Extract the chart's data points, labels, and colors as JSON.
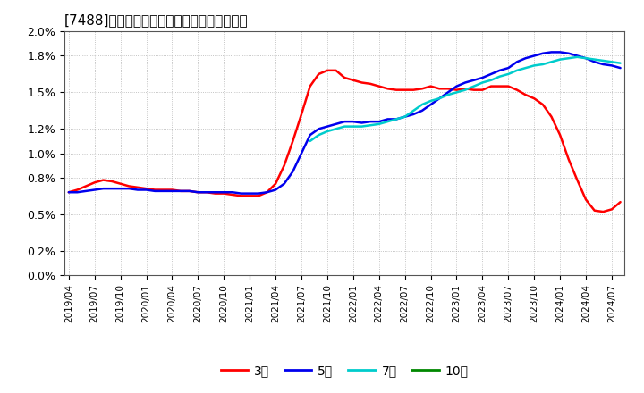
{
  "title": "[7488]　経常利益マージンの標準偏差の推移",
  "title_fontsize": 11,
  "background_color": "#ffffff",
  "plot_bg_color": "#ffffff",
  "grid_color": "#aaaaaa",
  "series": {
    "3年": {
      "color": "#ff0000",
      "linewidth": 1.8,
      "x": [
        0,
        1,
        2,
        3,
        4,
        5,
        6,
        7,
        8,
        9,
        10,
        11,
        12,
        13,
        14,
        15,
        16,
        17,
        18,
        19,
        20,
        21,
        22,
        23,
        24,
        25,
        26,
        27,
        28,
        29,
        30,
        31,
        32,
        33,
        34,
        35,
        36,
        37,
        38,
        39,
        40,
        41,
        42,
        43,
        44,
        45,
        46,
        47,
        48,
        49,
        50,
        51,
        52,
        53,
        54,
        55,
        56,
        57,
        58,
        59,
        60,
        61,
        62,
        63,
        64
      ],
      "y": [
        0.0068,
        0.007,
        0.0073,
        0.0076,
        0.0078,
        0.0077,
        0.0075,
        0.0073,
        0.0072,
        0.0071,
        0.007,
        0.007,
        0.007,
        0.0069,
        0.0069,
        0.0068,
        0.0068,
        0.0067,
        0.0067,
        0.0066,
        0.0065,
        0.0065,
        0.0065,
        0.0068,
        0.0075,
        0.009,
        0.011,
        0.0132,
        0.0155,
        0.0165,
        0.0168,
        0.0168,
        0.0162,
        0.016,
        0.0158,
        0.0157,
        0.0155,
        0.0153,
        0.0152,
        0.0152,
        0.0152,
        0.0153,
        0.0155,
        0.0153,
        0.0153,
        0.0152,
        0.0153,
        0.0152,
        0.0152,
        0.0155,
        0.0155,
        0.0155,
        0.0152,
        0.0148,
        0.0145,
        0.014,
        0.013,
        0.0115,
        0.0095,
        0.0078,
        0.0062,
        0.0053,
        0.0052,
        0.0054,
        0.006
      ]
    },
    "5年": {
      "color": "#0000ee",
      "linewidth": 1.8,
      "x": [
        0,
        1,
        2,
        3,
        4,
        5,
        6,
        7,
        8,
        9,
        10,
        11,
        12,
        13,
        14,
        15,
        16,
        17,
        18,
        19,
        20,
        21,
        22,
        23,
        24,
        25,
        26,
        27,
        28,
        29,
        30,
        31,
        32,
        33,
        34,
        35,
        36,
        37,
        38,
        39,
        40,
        41,
        42,
        43,
        44,
        45,
        46,
        47,
        48,
        49,
        50,
        51,
        52,
        53,
        54,
        55,
        56,
        57,
        58,
        59,
        60,
        61,
        62,
        63,
        64
      ],
      "y": [
        0.0068,
        0.0068,
        0.0069,
        0.007,
        0.0071,
        0.0071,
        0.0071,
        0.0071,
        0.007,
        0.007,
        0.0069,
        0.0069,
        0.0069,
        0.0069,
        0.0069,
        0.0068,
        0.0068,
        0.0068,
        0.0068,
        0.0068,
        0.0067,
        0.0067,
        0.0067,
        0.0068,
        0.007,
        0.0075,
        0.0085,
        0.01,
        0.0115,
        0.012,
        0.0122,
        0.0124,
        0.0126,
        0.0126,
        0.0125,
        0.0126,
        0.0126,
        0.0128,
        0.0128,
        0.013,
        0.0132,
        0.0135,
        0.014,
        0.0145,
        0.015,
        0.0155,
        0.0158,
        0.016,
        0.0162,
        0.0165,
        0.0168,
        0.017,
        0.0175,
        0.0178,
        0.018,
        0.0182,
        0.0183,
        0.0183,
        0.0182,
        0.018,
        0.0178,
        0.0175,
        0.0173,
        0.0172,
        0.017
      ]
    },
    "7年": {
      "color": "#00cccc",
      "linewidth": 1.8,
      "x": [
        28,
        29,
        30,
        31,
        32,
        33,
        34,
        35,
        36,
        37,
        38,
        39,
        40,
        41,
        42,
        43,
        44,
        45,
        46,
        47,
        48,
        49,
        50,
        51,
        52,
        53,
        54,
        55,
        56,
        57,
        58,
        59,
        60,
        61,
        62,
        63,
        64
      ],
      "y": [
        0.011,
        0.0115,
        0.0118,
        0.012,
        0.0122,
        0.0122,
        0.0122,
        0.0123,
        0.0124,
        0.0126,
        0.0128,
        0.013,
        0.0135,
        0.014,
        0.0143,
        0.0145,
        0.0148,
        0.015,
        0.0152,
        0.0155,
        0.0158,
        0.016,
        0.0163,
        0.0165,
        0.0168,
        0.017,
        0.0172,
        0.0173,
        0.0175,
        0.0177,
        0.0178,
        0.0179,
        0.0178,
        0.0177,
        0.0176,
        0.0175,
        0.0174
      ]
    },
    "10年": {
      "color": "#008800",
      "linewidth": 1.8,
      "x": [],
      "y": []
    }
  },
  "x_tick_labels": [
    "2019/04",
    "2019/07",
    "2019/10",
    "2020/01",
    "2020/04",
    "2020/07",
    "2020/10",
    "2021/01",
    "2021/04",
    "2021/07",
    "2021/10",
    "2022/01",
    "2022/04",
    "2022/07",
    "2022/10",
    "2023/01",
    "2023/04",
    "2023/07",
    "2023/10",
    "2024/01",
    "2024/04",
    "2024/07"
  ],
  "x_tick_positions": [
    0,
    3,
    6,
    9,
    12,
    15,
    18,
    21,
    24,
    27,
    30,
    33,
    36,
    39,
    42,
    45,
    48,
    51,
    54,
    57,
    60,
    63
  ],
  "legend_labels": [
    "3年",
    "5年",
    "7年",
    "10年"
  ],
  "legend_colors": [
    "#ff0000",
    "#0000ee",
    "#00cccc",
    "#008800"
  ],
  "ylim": [
    0.0,
    0.02
  ],
  "ytick_vals": [
    0.0,
    0.002,
    0.005,
    0.008,
    0.01,
    0.012,
    0.015,
    0.018,
    0.02
  ],
  "ytick_labels": [
    "0.0%",
    "0.2%",
    "0.5%",
    "0.8%",
    "1.0%",
    "1.2%",
    "1.5%",
    "1.8%",
    "2.0%"
  ]
}
